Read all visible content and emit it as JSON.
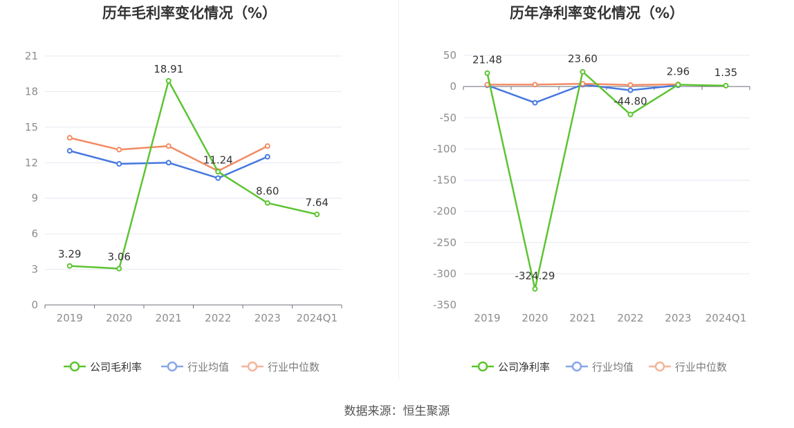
{
  "source_label": "数据来源：恒生聚源",
  "colors": {
    "company": "#5cc431",
    "avg": "#4678e0",
    "median": "#f28b64"
  },
  "chart_data": [
    {
      "type": "line",
      "title": "历年毛利率变化情况（%）",
      "categories": [
        "2019",
        "2020",
        "2021",
        "2022",
        "2023",
        "2024Q1"
      ],
      "ylim": [
        0,
        21
      ],
      "yticks": [
        0,
        3,
        6,
        9,
        12,
        15,
        18,
        21
      ],
      "ytick_labels": [
        "0",
        "3",
        "6",
        "9",
        "12",
        "15",
        "18",
        "21"
      ],
      "grid": true,
      "legend_position": "bottom",
      "series": [
        {
          "name": "公司毛利率",
          "key": "company",
          "values": [
            3.29,
            3.06,
            18.91,
            11.24,
            8.6,
            7.64
          ],
          "labels": [
            "3.29",
            "3.06",
            "18.91",
            "11.24",
            "8.60",
            "7.64"
          ]
        },
        {
          "name": "行业均值",
          "key": "avg",
          "values": [
            13.0,
            11.9,
            12.0,
            10.7,
            12.5,
            null
          ]
        },
        {
          "name": "行业中位数",
          "key": "median",
          "values": [
            14.1,
            13.1,
            13.4,
            11.3,
            13.4,
            null
          ]
        }
      ]
    },
    {
      "type": "line",
      "title": "历年净利率变化情况（%）",
      "categories": [
        "2019",
        "2020",
        "2021",
        "2022",
        "2023",
        "2024Q1"
      ],
      "ylim": [
        -350,
        50
      ],
      "yticks": [
        -350,
        -300,
        -250,
        -200,
        -150,
        -100,
        -50,
        0,
        50
      ],
      "ytick_labels": [
        "-350",
        "-300",
        "-250",
        "-200",
        "-150",
        "-100",
        "-50",
        "0",
        "50"
      ],
      "grid": true,
      "legend_position": "bottom",
      "series": [
        {
          "name": "公司净利率",
          "key": "company",
          "values": [
            21.48,
            -324.29,
            23.6,
            -44.8,
            2.96,
            1.35
          ],
          "labels": [
            "21.48",
            "-324.29",
            "23.60",
            "-44.80",
            "2.96",
            "1.35"
          ]
        },
        {
          "name": "行业均值",
          "key": "avg",
          "values": [
            2.0,
            -26.0,
            3.0,
            -6.0,
            2.0,
            null
          ]
        },
        {
          "name": "行业中位数",
          "key": "median",
          "values": [
            3.0,
            3.0,
            4.5,
            2.5,
            3.5,
            null
          ]
        }
      ]
    }
  ]
}
